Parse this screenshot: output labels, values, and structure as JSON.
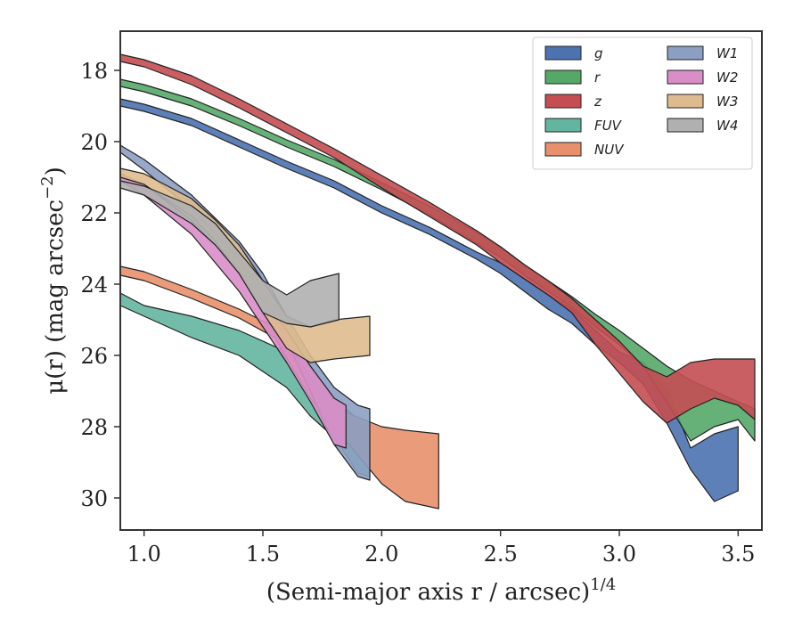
{
  "chart_data": {
    "type": "area",
    "title": "",
    "xlabel": "(Semi-major axis r / arcsec)",
    "xlabel_superscript": "1/4",
    "ylabel": "μ(r) (mag arcsec",
    "ylabel_superscript": "−2",
    "ylabel_tail": ")",
    "xlim": [
      0.9,
      3.6
    ],
    "ylim": [
      30.9,
      16.9
    ],
    "y_inverted": true,
    "xticks": [
      1.0,
      1.5,
      2.0,
      2.5,
      3.0,
      3.5
    ],
    "xtick_labels": [
      "1.0",
      "1.5",
      "2.0",
      "2.5",
      "3.0",
      "3.5"
    ],
    "yticks": [
      18,
      20,
      22,
      24,
      26,
      28,
      30
    ],
    "ytick_labels": [
      "18",
      "20",
      "22",
      "24",
      "26",
      "28",
      "30"
    ],
    "grid": false,
    "legend_position": "top-right",
    "legend_columns": 2,
    "series": [
      {
        "name": "g",
        "color": "#4C72B0",
        "x": [
          0.9,
          1.0,
          1.2,
          1.4,
          1.6,
          1.8,
          2.0,
          2.2,
          2.4,
          2.5,
          2.6,
          2.7,
          2.8,
          2.9,
          3.0,
          3.1,
          3.2,
          3.3,
          3.4,
          3.5
        ],
        "lo": [
          18.8,
          18.95,
          19.35,
          19.95,
          20.55,
          21.1,
          21.8,
          22.4,
          23.1,
          23.4,
          23.85,
          24.3,
          24.7,
          25.3,
          25.9,
          26.2,
          26.9,
          28.6,
          28.2,
          28.0
        ],
        "hi": [
          19.0,
          19.15,
          19.55,
          20.15,
          20.75,
          21.3,
          22.0,
          22.6,
          23.3,
          23.7,
          24.2,
          24.7,
          25.1,
          25.7,
          26.2,
          26.8,
          27.9,
          29.2,
          30.1,
          29.8
        ]
      },
      {
        "name": "r",
        "color": "#55A868",
        "x": [
          0.9,
          1.0,
          1.2,
          1.4,
          1.6,
          1.8,
          2.0,
          2.2,
          2.4,
          2.5,
          2.6,
          2.7,
          2.8,
          2.9,
          3.0,
          3.1,
          3.2,
          3.3,
          3.4,
          3.5,
          3.57
        ],
        "lo": [
          18.25,
          18.4,
          18.8,
          19.35,
          19.95,
          20.5,
          21.15,
          21.8,
          22.55,
          22.95,
          23.45,
          23.9,
          24.35,
          24.85,
          25.3,
          25.8,
          26.3,
          26.7,
          27.0,
          27.3,
          27.5
        ],
        "hi": [
          18.45,
          18.6,
          19.0,
          19.55,
          20.15,
          20.7,
          21.35,
          22.05,
          22.85,
          23.25,
          23.75,
          24.2,
          24.65,
          25.2,
          25.7,
          26.3,
          27.3,
          28.4,
          28.0,
          27.8,
          28.4
        ]
      },
      {
        "name": "z",
        "color": "#C44E52",
        "x": [
          0.9,
          1.0,
          1.2,
          1.4,
          1.6,
          1.8,
          2.0,
          2.2,
          2.4,
          2.5,
          2.6,
          2.7,
          2.8,
          2.9,
          3.0,
          3.1,
          3.2,
          3.3,
          3.4,
          3.5,
          3.57
        ],
        "lo": [
          17.55,
          17.7,
          18.15,
          18.8,
          19.5,
          20.2,
          20.95,
          21.7,
          22.5,
          22.95,
          23.45,
          23.9,
          24.4,
          25.0,
          25.6,
          26.3,
          26.6,
          26.2,
          26.1,
          26.1,
          26.1
        ],
        "hi": [
          17.75,
          17.9,
          18.4,
          19.05,
          19.75,
          20.45,
          21.3,
          22.1,
          22.9,
          23.4,
          23.85,
          24.3,
          24.8,
          25.7,
          26.5,
          27.3,
          27.9,
          27.5,
          27.2,
          27.4,
          27.8
        ]
      },
      {
        "name": "FUV",
        "color": "#64B5A0",
        "x": [
          0.9,
          1.0,
          1.2,
          1.4,
          1.6,
          1.7,
          1.8,
          1.9,
          1.95
        ],
        "lo": [
          24.25,
          24.6,
          24.9,
          25.3,
          25.9,
          26.7,
          27.2,
          27.8,
          28.2
        ],
        "hi": [
          24.6,
          24.9,
          25.5,
          26.0,
          26.9,
          27.7,
          28.3,
          29.3,
          29.4
        ]
      },
      {
        "name": "NUV",
        "color": "#E8906C",
        "x": [
          0.9,
          1.0,
          1.2,
          1.4,
          1.55,
          1.7,
          1.85,
          2.0,
          2.1,
          2.24
        ],
        "lo": [
          23.5,
          23.65,
          24.15,
          24.7,
          25.2,
          26.6,
          27.6,
          28.0,
          28.1,
          28.2
        ],
        "hi": [
          23.75,
          23.9,
          24.4,
          24.95,
          25.5,
          27.2,
          28.4,
          29.6,
          30.1,
          30.3
        ]
      },
      {
        "name": "W1",
        "color": "#8C9EC2",
        "x": [
          0.9,
          1.0,
          1.2,
          1.4,
          1.5,
          1.6,
          1.7,
          1.8,
          1.9,
          1.95
        ],
        "lo": [
          20.1,
          20.5,
          21.5,
          22.8,
          23.7,
          24.9,
          26.0,
          26.9,
          27.4,
          27.5
        ],
        "hi": [
          20.3,
          20.8,
          21.9,
          23.3,
          24.3,
          25.6,
          27.0,
          28.5,
          29.4,
          29.5
        ]
      },
      {
        "name": "W2",
        "color": "#D98EC8",
        "x": [
          0.9,
          1.0,
          1.2,
          1.4,
          1.5,
          1.6,
          1.7,
          1.8,
          1.85
        ],
        "lo": [
          20.9,
          21.2,
          22.2,
          23.6,
          24.4,
          25.3,
          26.3,
          27.2,
          27.4
        ],
        "hi": [
          21.1,
          21.5,
          22.6,
          24.2,
          25.2,
          26.2,
          27.3,
          28.5,
          28.6
        ]
      },
      {
        "name": "W3",
        "color": "#DEBB8E",
        "x": [
          0.9,
          1.0,
          1.2,
          1.3,
          1.4,
          1.5,
          1.6,
          1.7,
          1.8,
          1.95
        ],
        "lo": [
          20.75,
          20.9,
          21.6,
          22.2,
          22.9,
          23.9,
          24.9,
          25.2,
          25.0,
          24.9
        ],
        "hi": [
          21.0,
          21.2,
          22.1,
          22.8,
          23.7,
          24.8,
          25.8,
          26.2,
          26.1,
          26.0
        ]
      },
      {
        "name": "W4",
        "color": "#B0B0B0",
        "x": [
          0.9,
          1.0,
          1.2,
          1.3,
          1.4,
          1.5,
          1.6,
          1.7,
          1.82
        ],
        "lo": [
          21.1,
          21.25,
          21.8,
          22.3,
          23.1,
          23.9,
          24.3,
          23.9,
          23.7
        ],
        "hi": [
          21.3,
          21.5,
          22.3,
          22.9,
          23.7,
          24.8,
          25.1,
          25.2,
          25.0
        ]
      }
    ]
  }
}
